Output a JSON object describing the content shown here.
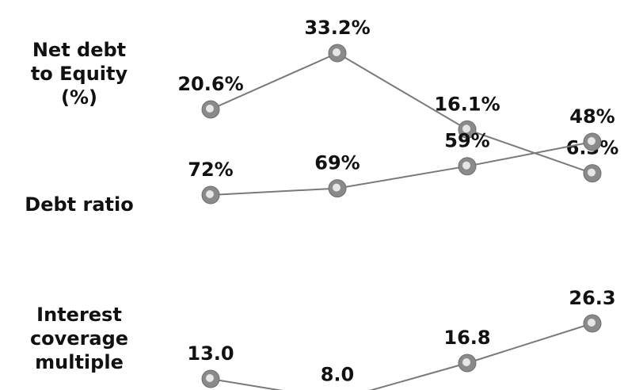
{
  "chart_data": {
    "type": "line",
    "title": "",
    "grid": false,
    "series": [
      {
        "name": "Net debt\nto Equity\n(%)",
        "values": [
          20.6,
          33.2,
          16.1,
          6.3
        ],
        "labels": [
          "20.6%",
          "33.2%",
          "16.1%",
          "6.3%"
        ]
      },
      {
        "name": "Debt ratio",
        "values": [
          72,
          69,
          59,
          48
        ],
        "labels": [
          "72%",
          "69%",
          "59%",
          "48%"
        ]
      },
      {
        "name": "Interest\ncoverage\nmultiple",
        "values": [
          13.0,
          8.0,
          16.8,
          26.3
        ],
        "labels": [
          "13.0",
          "8.0",
          "16.8",
          "26.3"
        ]
      }
    ]
  },
  "style": {
    "line_color": "#7a7a7a",
    "marker_outer": "#8a8a8a",
    "marker_inner": "#e6e6e6",
    "text_color": "#111111"
  }
}
